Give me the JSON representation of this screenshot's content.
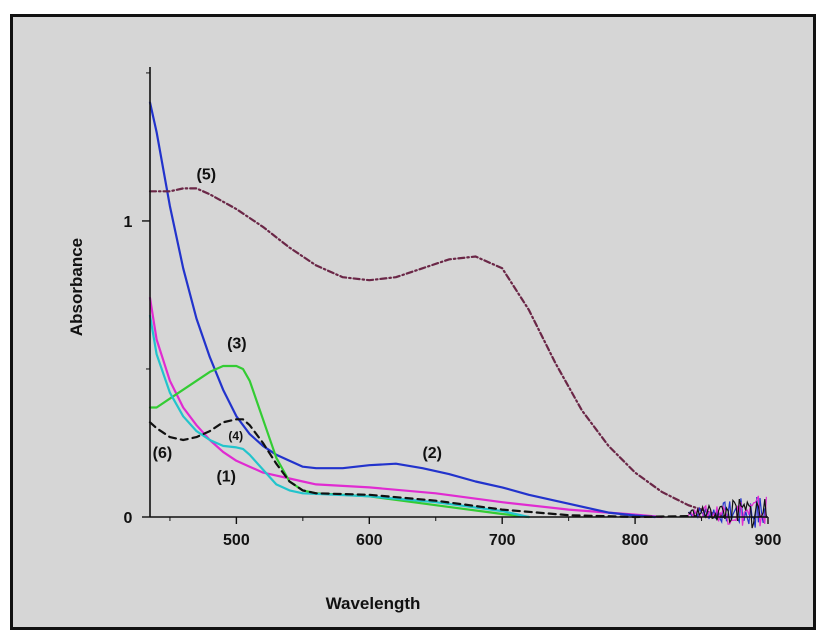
{
  "chart_data": {
    "type": "line",
    "xlabel": "Wavelength",
    "ylabel": "Absorbance",
    "xlim": [
      435,
      900
    ],
    "ylim": [
      0,
      1.52
    ],
    "xticks": [
      500,
      600,
      700,
      800,
      900
    ],
    "xtick_labels": [
      "500",
      "600",
      "700",
      "800",
      "900"
    ],
    "yticks": [
      0,
      1
    ],
    "ytick_labels": [
      "0",
      "1"
    ],
    "grid": false,
    "series": [
      {
        "name": "(1)",
        "color": "#e02bd1",
        "dash": "solid",
        "label_pos": [
          485,
          0.12
        ],
        "x": [
          435,
          440,
          450,
          460,
          470,
          480,
          490,
          500,
          510,
          520,
          530,
          540,
          550,
          560,
          600,
          650,
          700,
          750,
          800,
          820
        ],
        "y": [
          0.74,
          0.6,
          0.46,
          0.37,
          0.31,
          0.26,
          0.22,
          0.19,
          0.17,
          0.15,
          0.14,
          0.13,
          0.12,
          0.11,
          0.1,
          0.08,
          0.05,
          0.025,
          0.008,
          0.0
        ]
      },
      {
        "name": "(2)",
        "color": "#2233cc",
        "dash": "solid",
        "label_pos": [
          640,
          0.2
        ],
        "x": [
          435,
          440,
          450,
          460,
          470,
          480,
          490,
          500,
          510,
          520,
          530,
          540,
          550,
          560,
          580,
          600,
          620,
          640,
          660,
          680,
          700,
          720,
          750,
          780,
          800,
          815
        ],
        "y": [
          1.4,
          1.3,
          1.05,
          0.84,
          0.67,
          0.54,
          0.43,
          0.34,
          0.28,
          0.24,
          0.21,
          0.19,
          0.17,
          0.165,
          0.165,
          0.175,
          0.18,
          0.165,
          0.145,
          0.12,
          0.1,
          0.075,
          0.045,
          0.015,
          0.005,
          0.0
        ]
      },
      {
        "name": "(3)",
        "color": "#33cc33",
        "dash": "solid",
        "label_pos": [
          493,
          0.57
        ],
        "x": [
          435,
          440,
          450,
          460,
          470,
          480,
          490,
          500,
          505,
          510,
          520,
          530,
          540,
          550,
          560,
          600,
          650,
          700,
          720
        ],
        "y": [
          0.37,
          0.37,
          0.4,
          0.43,
          0.46,
          0.49,
          0.51,
          0.51,
          0.5,
          0.46,
          0.33,
          0.2,
          0.12,
          0.09,
          0.08,
          0.07,
          0.04,
          0.01,
          0.0
        ]
      },
      {
        "name": "(4)",
        "color": "#22c4cc",
        "dash": "solid",
        "label_pos": [
          494,
          0.26
        ],
        "x": [
          435,
          440,
          450,
          460,
          470,
          480,
          490,
          500,
          505,
          510,
          520,
          530,
          540,
          550,
          600,
          650,
          700,
          720
        ],
        "y": [
          0.68,
          0.55,
          0.42,
          0.34,
          0.29,
          0.26,
          0.24,
          0.235,
          0.23,
          0.21,
          0.16,
          0.11,
          0.09,
          0.08,
          0.07,
          0.05,
          0.02,
          0.0
        ]
      },
      {
        "name": "(5)",
        "color": "#6b2747",
        "dash": "dashdot",
        "label_pos": [
          470,
          1.14
        ],
        "x": [
          435,
          450,
          460,
          470,
          480,
          500,
          520,
          540,
          560,
          580,
          600,
          620,
          640,
          660,
          680,
          700,
          720,
          740,
          760,
          780,
          800,
          820,
          840,
          860,
          870
        ],
        "y": [
          1.1,
          1.1,
          1.11,
          1.11,
          1.09,
          1.04,
          0.98,
          0.91,
          0.85,
          0.81,
          0.8,
          0.81,
          0.84,
          0.87,
          0.88,
          0.84,
          0.7,
          0.52,
          0.36,
          0.24,
          0.15,
          0.085,
          0.04,
          0.01,
          0.0
        ]
      },
      {
        "name": "(6)",
        "color": "#111111",
        "dash": "dashed",
        "label_pos": [
          437,
          0.2
        ],
        "x": [
          435,
          440,
          450,
          460,
          470,
          480,
          490,
          500,
          505,
          510,
          520,
          530,
          540,
          550,
          560,
          600,
          650,
          700,
          750,
          800,
          840,
          870
        ],
        "y": [
          0.32,
          0.3,
          0.27,
          0.26,
          0.27,
          0.29,
          0.32,
          0.33,
          0.33,
          0.31,
          0.25,
          0.18,
          0.12,
          0.09,
          0.08,
          0.075,
          0.055,
          0.025,
          0.006,
          0.0,
          0.003,
          0.0
        ]
      }
    ],
    "noise_series": {
      "x_range": [
        840,
        900
      ],
      "base": 0.015,
      "colors": [
        "#2233cc",
        "#e02bd1",
        "#111111"
      ]
    }
  }
}
